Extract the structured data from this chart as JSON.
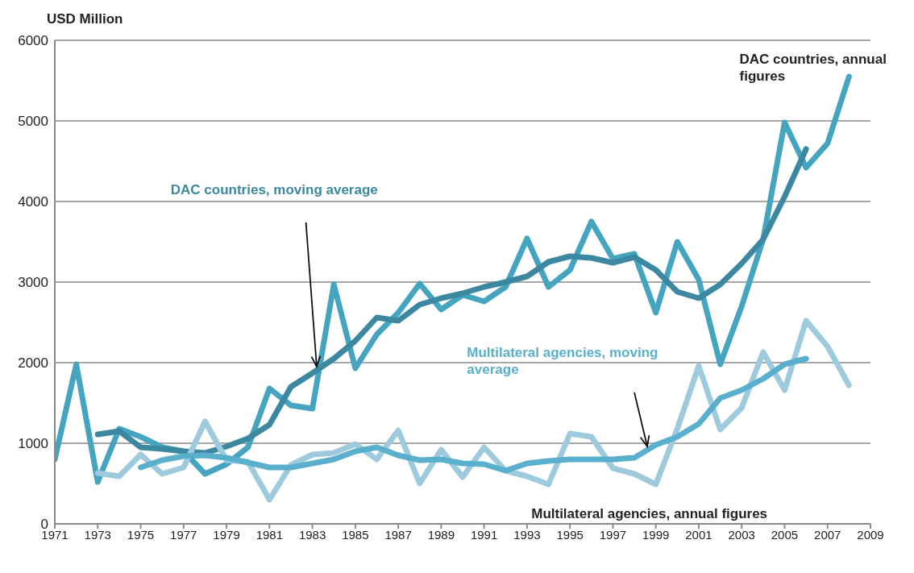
{
  "chart_data": {
    "type": "line",
    "ylabel": "USD Million",
    "xlim": [
      1971,
      2009
    ],
    "xticks": [
      1971,
      1973,
      1975,
      1977,
      1979,
      1981,
      1983,
      1985,
      1987,
      1989,
      1991,
      1993,
      1995,
      1997,
      1999,
      2001,
      2003,
      2005,
      2007,
      2009
    ],
    "ylim": [
      0,
      6000
    ],
    "yticks": [
      0,
      1000,
      2000,
      3000,
      4000,
      5000,
      6000
    ],
    "grid": "y",
    "legend": false,
    "marker": "none",
    "line_style": "solid",
    "series": [
      {
        "name": "DAC countries, annual figures",
        "color": "#45a5c1",
        "x": [
          1971,
          1972,
          1973,
          1974,
          1975,
          1976,
          1977,
          1978,
          1979,
          1980,
          1981,
          1982,
          1983,
          1984,
          1985,
          1986,
          1987,
          1988,
          1989,
          1990,
          1991,
          1992,
          1993,
          1994,
          1995,
          1996,
          1997,
          1998,
          1999,
          2000,
          2001,
          2002,
          2003,
          2004,
          2005,
          2006,
          2007,
          2008
        ],
        "values": [
          800,
          1980,
          520,
          1180,
          1080,
          950,
          900,
          620,
          740,
          950,
          1680,
          1470,
          1430,
          2970,
          1930,
          2350,
          2620,
          2980,
          2660,
          2840,
          2760,
          2940,
          3540,
          2940,
          3150,
          3750,
          3290,
          3350,
          2620,
          3500,
          3030,
          1980,
          2700,
          3530,
          4980,
          4420,
          4720,
          5550
        ]
      },
      {
        "name": "DAC countries, moving average",
        "color": "#3c88a0",
        "x": [
          1973,
          1974,
          1975,
          1976,
          1977,
          1978,
          1979,
          1980,
          1981,
          1982,
          1983,
          1984,
          1985,
          1986,
          1987,
          1988,
          1989,
          1990,
          1991,
          1992,
          1993,
          1994,
          1995,
          1996,
          1997,
          1998,
          1999,
          2000,
          2001,
          2002,
          2003,
          2004,
          2005,
          2006
        ],
        "values": [
          1110,
          1150,
          950,
          930,
          900,
          880,
          960,
          1060,
          1230,
          1700,
          1870,
          2050,
          2270,
          2560,
          2520,
          2720,
          2800,
          2860,
          2940,
          3000,
          3070,
          3250,
          3320,
          3300,
          3240,
          3310,
          3150,
          2880,
          2800,
          2970,
          3230,
          3530,
          4060,
          4650
        ]
      },
      {
        "name": "Multilateral agencies, annual figures",
        "color": "#9dcadc",
        "x": [
          1973,
          1974,
          1975,
          1976,
          1977,
          1978,
          1979,
          1980,
          1981,
          1982,
          1983,
          1984,
          1985,
          1986,
          1987,
          1988,
          1989,
          1990,
          1991,
          1992,
          1993,
          1994,
          1995,
          1996,
          1997,
          1998,
          1999,
          2000,
          2001,
          2002,
          2003,
          2004,
          2005,
          2006,
          2007,
          2008
        ],
        "values": [
          630,
          590,
          860,
          620,
          700,
          1270,
          790,
          770,
          300,
          730,
          860,
          880,
          990,
          800,
          1160,
          500,
          920,
          580,
          950,
          660,
          590,
          490,
          1120,
          1080,
          690,
          620,
          490,
          1180,
          1960,
          1170,
          1440,
          2130,
          1660,
          2520,
          2200,
          1720
        ]
      },
      {
        "name": "Multilateral agencies, moving average",
        "color": "#5ab0cc",
        "x": [
          1975,
          1976,
          1977,
          1978,
          1979,
          1980,
          1981,
          1982,
          1983,
          1984,
          1985,
          1986,
          1987,
          1988,
          1989,
          1990,
          1991,
          1992,
          1993,
          1994,
          1995,
          1996,
          1997,
          1998,
          1999,
          2000,
          2001,
          2002,
          2003,
          2004,
          2005,
          2006
        ],
        "values": [
          700,
          790,
          840,
          850,
          820,
          760,
          700,
          700,
          750,
          800,
          900,
          950,
          850,
          790,
          800,
          750,
          740,
          660,
          750,
          780,
          800,
          800,
          800,
          820,
          980,
          1080,
          1240,
          1560,
          1660,
          1800,
          1980,
          2050
        ]
      }
    ]
  }
}
